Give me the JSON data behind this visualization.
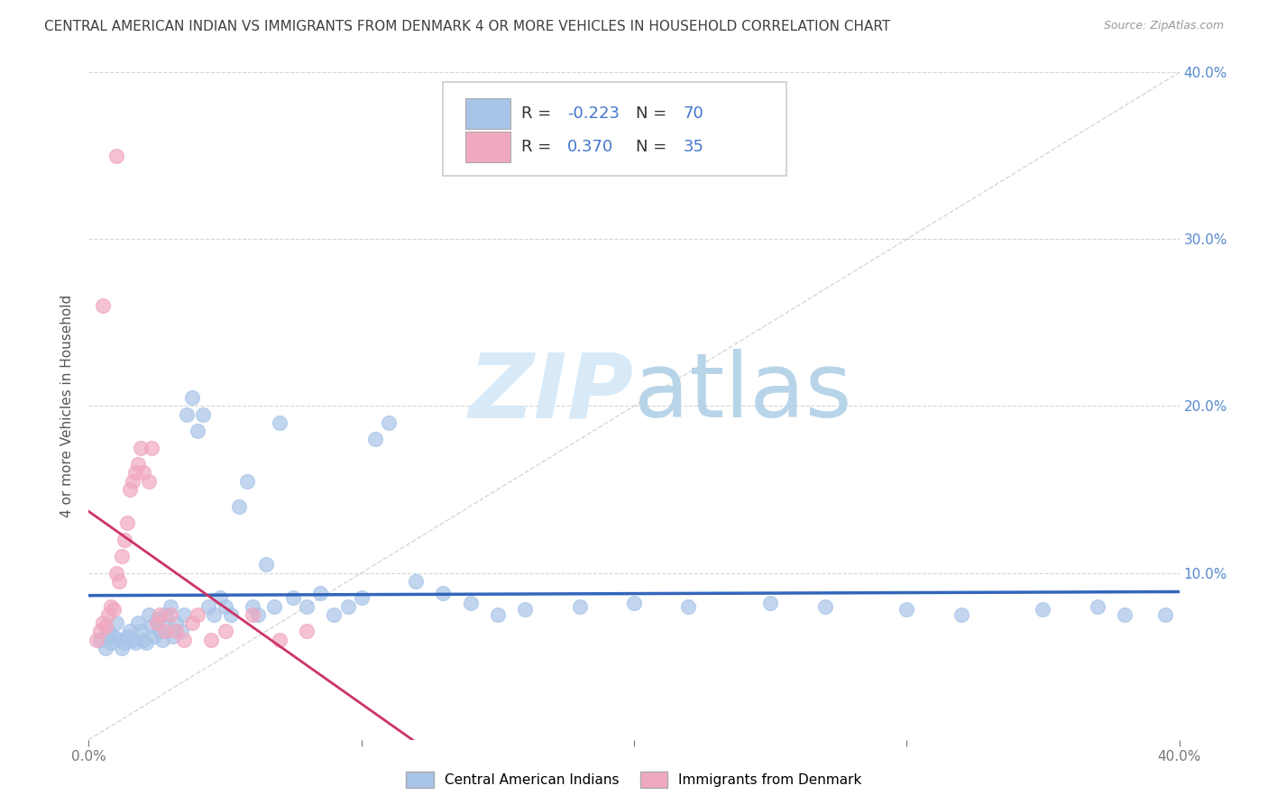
{
  "title": "CENTRAL AMERICAN INDIAN VS IMMIGRANTS FROM DENMARK 4 OR MORE VEHICLES IN HOUSEHOLD CORRELATION CHART",
  "source": "Source: ZipAtlas.com",
  "ylabel": "4 or more Vehicles in Household",
  "xlim": [
    0.0,
    0.4
  ],
  "ylim": [
    0.0,
    0.4
  ],
  "ytick_vals": [
    0.0,
    0.1,
    0.2,
    0.3,
    0.4
  ],
  "xtick_vals": [
    0.0,
    0.1,
    0.2,
    0.3,
    0.4
  ],
  "blue_R": -0.223,
  "blue_N": 70,
  "pink_R": 0.37,
  "pink_N": 35,
  "legend_label_blue": "Central American Indians",
  "legend_label_pink": "Immigrants from Denmark",
  "blue_color": "#a8c4e8",
  "pink_color": "#f0a8c0",
  "blue_line_color": "#3366bb",
  "pink_line_color": "#cc3366",
  "title_color": "#404040",
  "source_color": "#999999",
  "axis_label_color": "#555555",
  "tick_color_right": "#5588cc",
  "grid_color": "#cccccc",
  "watermark_color": "#d8eaf8",
  "blue_scatter_x": [
    0.004,
    0.006,
    0.007,
    0.008,
    0.009,
    0.01,
    0.011,
    0.012,
    0.013,
    0.014,
    0.015,
    0.016,
    0.017,
    0.018,
    0.019,
    0.02,
    0.021,
    0.022,
    0.023,
    0.024,
    0.025,
    0.026,
    0.027,
    0.028,
    0.029,
    0.03,
    0.031,
    0.032,
    0.034,
    0.035,
    0.036,
    0.038,
    0.04,
    0.042,
    0.044,
    0.046,
    0.048,
    0.05,
    0.052,
    0.055,
    0.058,
    0.06,
    0.062,
    0.065,
    0.068,
    0.07,
    0.075,
    0.08,
    0.085,
    0.09,
    0.095,
    0.1,
    0.105,
    0.11,
    0.12,
    0.13,
    0.14,
    0.15,
    0.16,
    0.18,
    0.2,
    0.22,
    0.25,
    0.27,
    0.3,
    0.32,
    0.35,
    0.37,
    0.38,
    0.395
  ],
  "blue_scatter_y": [
    0.06,
    0.055,
    0.065,
    0.058,
    0.062,
    0.07,
    0.06,
    0.055,
    0.058,
    0.062,
    0.065,
    0.06,
    0.058,
    0.07,
    0.065,
    0.06,
    0.058,
    0.075,
    0.068,
    0.062,
    0.072,
    0.065,
    0.06,
    0.075,
    0.068,
    0.08,
    0.062,
    0.07,
    0.065,
    0.075,
    0.195,
    0.205,
    0.185,
    0.195,
    0.08,
    0.075,
    0.085,
    0.08,
    0.075,
    0.14,
    0.155,
    0.08,
    0.075,
    0.105,
    0.08,
    0.19,
    0.085,
    0.08,
    0.088,
    0.075,
    0.08,
    0.085,
    0.18,
    0.19,
    0.095,
    0.088,
    0.082,
    0.075,
    0.078,
    0.08,
    0.082,
    0.08,
    0.082,
    0.08,
    0.078,
    0.075,
    0.078,
    0.08,
    0.075,
    0.075
  ],
  "pink_scatter_x": [
    0.003,
    0.004,
    0.005,
    0.006,
    0.007,
    0.008,
    0.009,
    0.01,
    0.011,
    0.012,
    0.013,
    0.014,
    0.015,
    0.016,
    0.017,
    0.018,
    0.019,
    0.02,
    0.022,
    0.023,
    0.025,
    0.026,
    0.028,
    0.03,
    0.032,
    0.035,
    0.038,
    0.04,
    0.045,
    0.05,
    0.06,
    0.07,
    0.08,
    0.005,
    0.01
  ],
  "pink_scatter_y": [
    0.06,
    0.065,
    0.07,
    0.068,
    0.075,
    0.08,
    0.078,
    0.1,
    0.095,
    0.11,
    0.12,
    0.13,
    0.15,
    0.155,
    0.16,
    0.165,
    0.175,
    0.16,
    0.155,
    0.175,
    0.07,
    0.075,
    0.065,
    0.075,
    0.065,
    0.06,
    0.07,
    0.075,
    0.06,
    0.065,
    0.075,
    0.06,
    0.065,
    0.26,
    0.35
  ]
}
